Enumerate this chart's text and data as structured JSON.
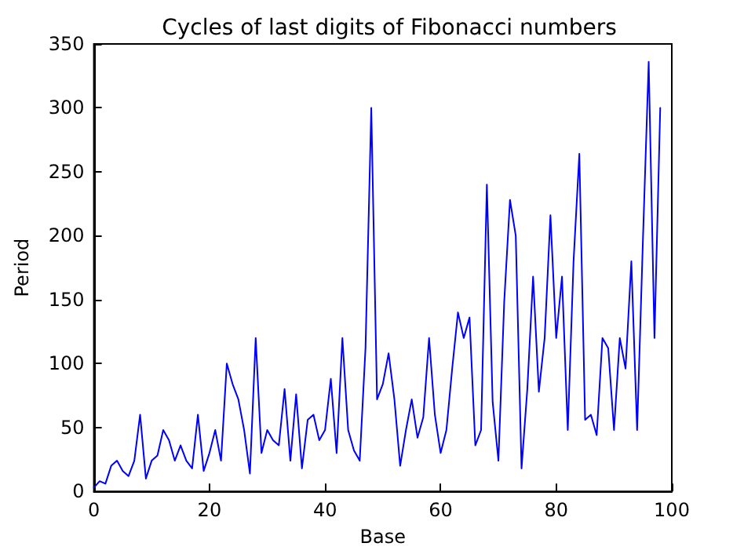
{
  "chart_data": {
    "type": "line",
    "title": "Cycles of last digits of Fibonacci numbers",
    "xlabel": "Base",
    "ylabel": "Period",
    "x": [
      0,
      1,
      2,
      3,
      4,
      5,
      6,
      7,
      8,
      9,
      10,
      11,
      12,
      13,
      14,
      15,
      16,
      17,
      18,
      19,
      20,
      21,
      22,
      23,
      24,
      25,
      26,
      27,
      28,
      29,
      30,
      31,
      32,
      33,
      34,
      35,
      36,
      37,
      38,
      39,
      40,
      41,
      42,
      43,
      44,
      45,
      46,
      47,
      48,
      49,
      50,
      51,
      52,
      53,
      54,
      55,
      56,
      57,
      58,
      59,
      60,
      61,
      62,
      63,
      64,
      65,
      66,
      67,
      68,
      69,
      70,
      71,
      72,
      73,
      74,
      75,
      76,
      77,
      78,
      79,
      80,
      81,
      82,
      83,
      84,
      85,
      86,
      87,
      88,
      89,
      90,
      91,
      92,
      93,
      94,
      95,
      96,
      97,
      98
    ],
    "series": [
      {
        "color": "#0000ff",
        "values": [
          3,
          8,
          6,
          20,
          24,
          16,
          12,
          24,
          60,
          10,
          24,
          28,
          48,
          40,
          24,
          36,
          24,
          18,
          60,
          16,
          30,
          48,
          24,
          100,
          84,
          72,
          48,
          14,
          120,
          30,
          48,
          40,
          36,
          80,
          24,
          76,
          18,
          56,
          60,
          40,
          48,
          88,
          30,
          120,
          48,
          32,
          24,
          112,
          300,
          72,
          84,
          108,
          72,
          20,
          48,
          72,
          42,
          58,
          120,
          60,
          30,
          48,
          96,
          140,
          120,
          136,
          36,
          48,
          240,
          70,
          24,
          148,
          228,
          200,
          18,
          80,
          168,
          78,
          120,
          216,
          120,
          168,
          48,
          180,
          264,
          56,
          60,
          44,
          120,
          112,
          48,
          120,
          96,
          180,
          48,
          196,
          336,
          120,
          300
        ]
      }
    ],
    "xlim": [
      0,
      100
    ],
    "xticks": [
      0,
      20,
      40,
      60,
      80,
      100
    ],
    "ylim": [
      0,
      350
    ],
    "yticks": [
      0,
      50,
      100,
      150,
      200,
      250,
      300,
      350
    ],
    "grid": false,
    "marker": "none",
    "line_style": "solid"
  }
}
